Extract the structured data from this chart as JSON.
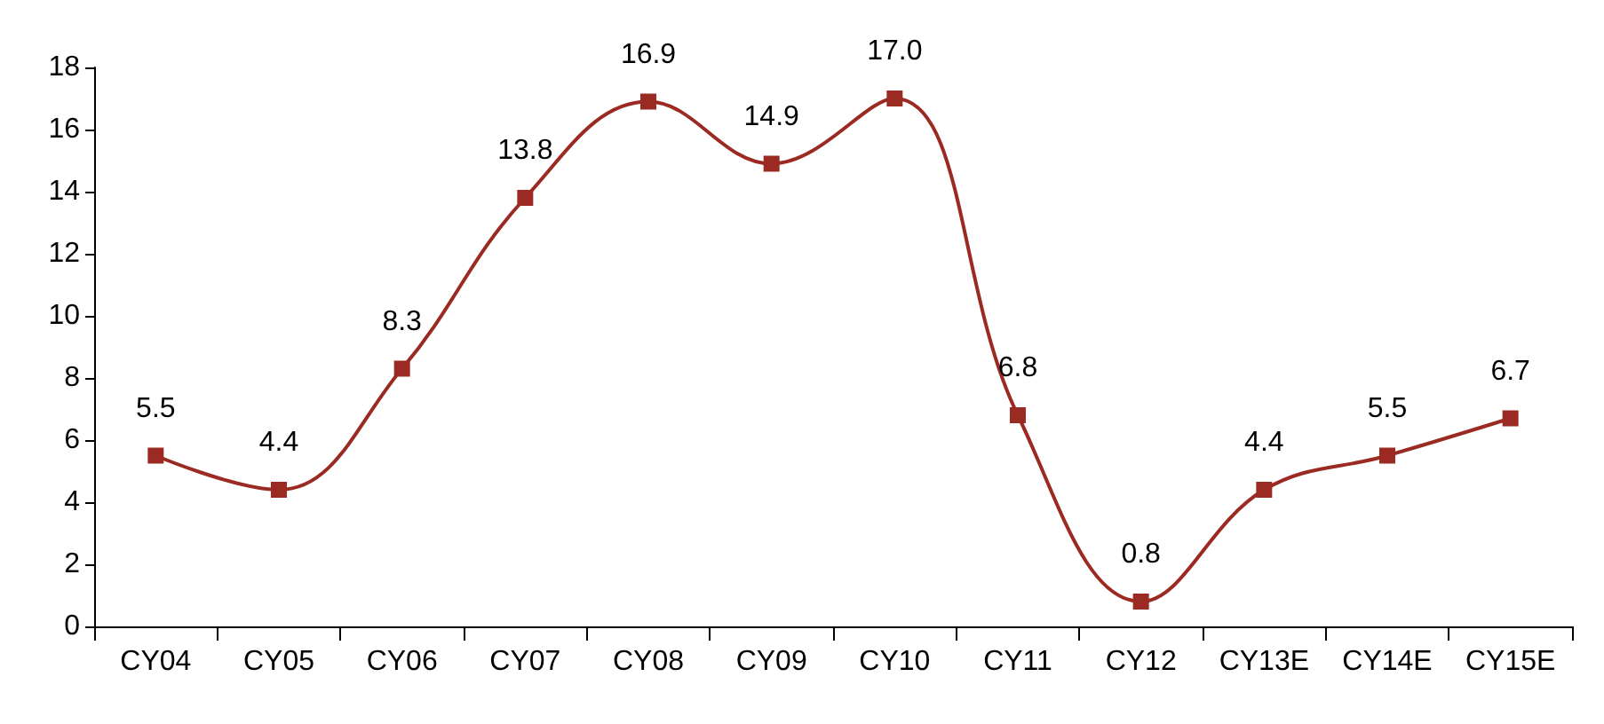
{
  "chart_data": {
    "type": "line",
    "categories": [
      "CY04",
      "CY05",
      "CY06",
      "CY07",
      "CY08",
      "CY09",
      "CY10",
      "CY11",
      "CY12",
      "CY13E",
      "CY14E",
      "CY15E"
    ],
    "series": [
      {
        "color": "#9b2a22",
        "values": [
          5.5,
          4.4,
          8.3,
          13.8,
          16.9,
          14.9,
          17.0,
          6.8,
          0.8,
          4.4,
          5.5,
          6.7
        ],
        "value_labels": [
          "5.5",
          "4.4",
          "8.3",
          "13.8",
          "16.9",
          "14.9",
          "17.0",
          "6.8",
          "0.8",
          "4.4",
          "5.5",
          "6.7"
        ]
      }
    ],
    "ylim": [
      0,
      18
    ],
    "yticks": [
      0,
      2,
      4,
      6,
      8,
      10,
      12,
      14,
      16,
      18
    ],
    "grid": false,
    "marker": "square",
    "line_style": "solid"
  }
}
